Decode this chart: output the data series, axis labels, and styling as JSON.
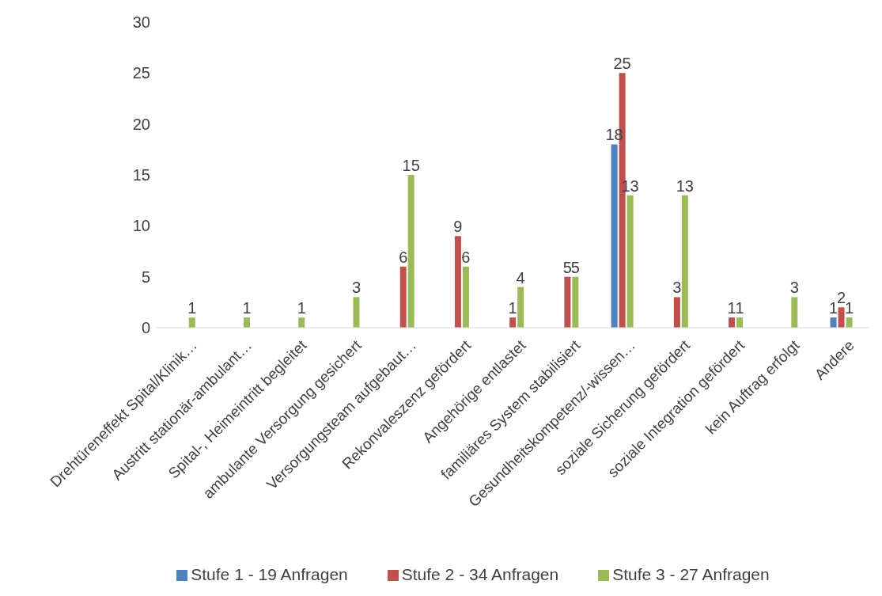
{
  "chart_data": {
    "type": "bar",
    "categories": [
      "Drehtüreneffekt Spital/Klinik…",
      "Austritt stationär-ambulant…",
      "Spital-, Heimeintritt begleitet",
      "ambulante Versorgung gesichert",
      "Versorgungsteam aufgebaut…",
      "Rekonvaleszenz gefördert",
      "Angehörige entlastet",
      "familiäres System stabilisiert",
      "Gesundheitskompetenz/-wissen…",
      "soziale Sicherung gefördert",
      "soziale Integration gefördert",
      "kein Auftrag erfolgt",
      "Andere"
    ],
    "series": [
      {
        "name": "Stufe 1 - 19 Anfragen",
        "color": "#4f81bd",
        "values": [
          null,
          null,
          null,
          null,
          null,
          null,
          null,
          null,
          18,
          null,
          null,
          null,
          1
        ]
      },
      {
        "name": "Stufe 2 - 34 Anfragen",
        "color": "#c0504d",
        "values": [
          null,
          null,
          null,
          null,
          6,
          9,
          1,
          5,
          25,
          3,
          1,
          null,
          2
        ]
      },
      {
        "name": "Stufe 3 - 27 Anfragen",
        "color": "#9bbb59",
        "values": [
          1,
          1,
          1,
          3,
          15,
          6,
          4,
          5,
          13,
          13,
          1,
          3,
          1
        ]
      }
    ],
    "ylim": [
      0,
      30
    ],
    "yticks": [
      0,
      5,
      10,
      15,
      20,
      25,
      30
    ],
    "grid": false,
    "legend": "bottom",
    "data_labels": true
  }
}
